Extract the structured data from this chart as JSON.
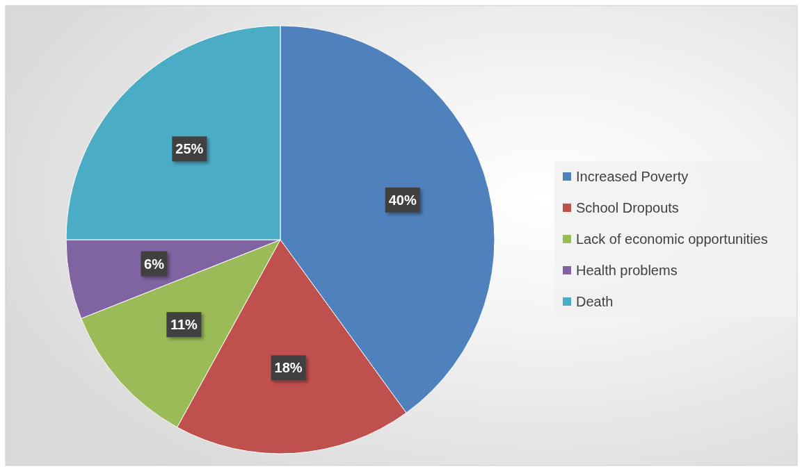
{
  "chart_data": {
    "type": "pie",
    "categories": [
      "Increased Poverty",
      "School Dropouts",
      "Lack of economic opportunities",
      "Health problems",
      "Death"
    ],
    "values": [
      40,
      18,
      11,
      6,
      25
    ],
    "colors": [
      "#4f81bd",
      "#c0504d",
      "#9bbb59",
      "#8064a2",
      "#4bacc6"
    ],
    "value_labels": [
      "40%",
      "18%",
      "11%",
      "6%",
      "25%"
    ],
    "legend": "right"
  }
}
